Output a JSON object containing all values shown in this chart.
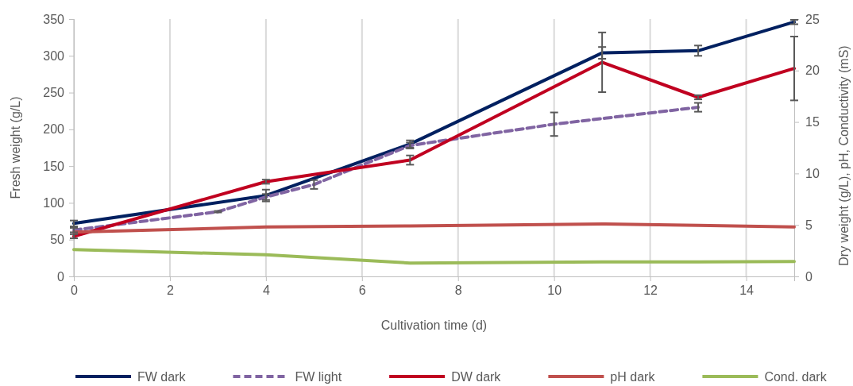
{
  "chart_data": {
    "type": "line",
    "xlabel": "Cultivation time (d)",
    "ylabel": "Fresh weight (g/L)",
    "y2label": "Dry weight (g/L), pH, Conductivity (mS)",
    "xlim": [
      0,
      15
    ],
    "xticks": [
      0,
      2,
      4,
      6,
      8,
      10,
      12,
      14
    ],
    "ylim": [
      0,
      350
    ],
    "yticks": [
      0,
      50,
      100,
      150,
      200,
      250,
      300,
      350
    ],
    "y2lim": [
      0,
      25
    ],
    "y2ticks": [
      0,
      5,
      10,
      15,
      20,
      25
    ],
    "grid": "x",
    "legend": "bottom",
    "series": [
      {
        "name": "FW dark",
        "color": "#002060",
        "line_style": "solid",
        "x": [
          0,
          4,
          7,
          11,
          13,
          15
        ],
        "values": [
          72,
          110,
          180,
          304,
          307,
          346
        ],
        "errors": [
          4,
          8,
          5,
          8,
          7,
          3
        ]
      },
      {
        "name": "FW light",
        "color": "#8064a2",
        "line_style": "dashed",
        "x": [
          0,
          3,
          4,
          5,
          7,
          10,
          13
        ],
        "values": [
          63,
          88,
          108,
          125,
          178,
          207,
          230
        ],
        "errors": [
          3,
          1,
          4,
          6,
          4,
          16,
          6
        ]
      },
      {
        "name": "DW dark",
        "color": "#c00020",
        "line_style": "solid",
        "axis": "y2",
        "x": [
          0,
          4,
          7,
          11,
          13,
          15
        ],
        "values": [
          3.9,
          9.2,
          11.3,
          20.8,
          17.4,
          20.2
        ],
        "errors": [
          0.2,
          0.2,
          0.45,
          2.9,
          0.2,
          3.1
        ]
      },
      {
        "name": "pH dark",
        "color": "#c0504d",
        "line_style": "solid",
        "axis": "y2",
        "x": [
          0,
          4,
          7,
          11,
          13,
          15
        ],
        "values": [
          4.3,
          4.8,
          4.9,
          5.1,
          4.95,
          4.8
        ]
      },
      {
        "name": "Cond. dark",
        "color": "#9bbb59",
        "line_style": "solid",
        "axis": "y2",
        "x": [
          0,
          4,
          7,
          11,
          13,
          15
        ],
        "values": [
          2.6,
          2.1,
          1.3,
          1.4,
          1.4,
          1.45
        ]
      }
    ]
  }
}
